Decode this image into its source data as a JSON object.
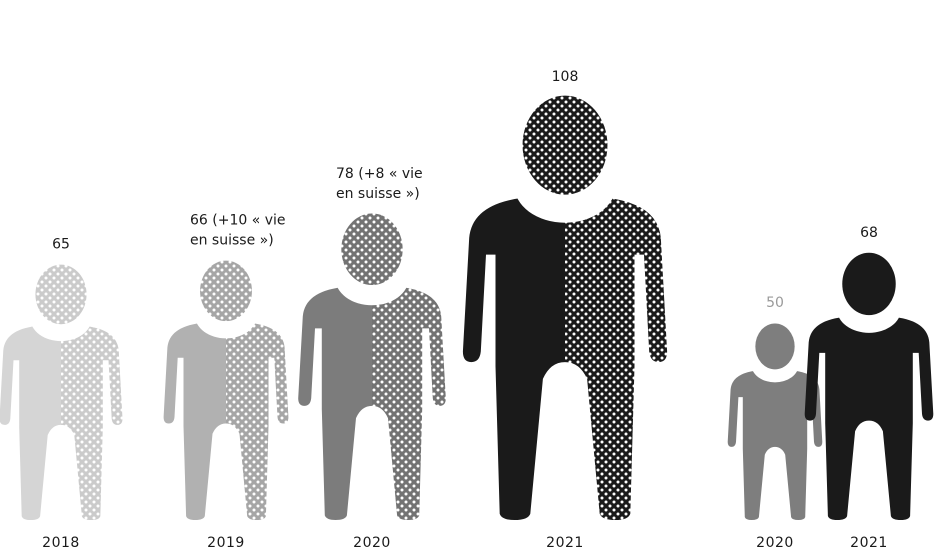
{
  "chart_data": {
    "type": "pictogram",
    "groups": [
      {
        "items": [
          {
            "category": "2018",
            "value": 65,
            "value_label": "65",
            "extra_line1": "",
            "extra_line2": "",
            "solid_color": "#d5d5d5",
            "dot_bg_color": "#cbcbcb",
            "label_color": "#1a1a1a",
            "style": "split"
          },
          {
            "category": "2019",
            "value": 66,
            "value_label": "66",
            "extra_line1": "(+10 « vie",
            "extra_line2": "en suisse »)",
            "solid_color": "#b1b1b1",
            "dot_bg_color": "#a6a6a6",
            "label_color": "#1a1a1a",
            "style": "split"
          },
          {
            "category": "2020",
            "value": 78,
            "value_label": "78",
            "extra_line1": "(+8 « vie",
            "extra_line2": "en suisse »)",
            "solid_color": "#7c7c7c",
            "dot_bg_color": "#737373",
            "label_color": "#1a1a1a",
            "style": "split"
          },
          {
            "category": "2021",
            "value": 108,
            "value_label": "108",
            "extra_line1": "",
            "extra_line2": "",
            "solid_color": "#1a1a1a",
            "dot_bg_color": "#1a1a1a",
            "label_color": "#1a1a1a",
            "style": "split"
          }
        ]
      },
      {
        "items": [
          {
            "category": "2020",
            "value": 50,
            "value_label": "50",
            "extra_line1": "",
            "extra_line2": "",
            "solid_color": "#7e7e7e",
            "dot_bg_color": "#7e7e7e",
            "label_color": "#9a9a9a",
            "style": "solid"
          },
          {
            "category": "2021",
            "value": 68,
            "value_label": "68",
            "extra_line1": "",
            "extra_line2": "",
            "solid_color": "#1a1a1a",
            "dot_bg_color": "#1a1a1a",
            "label_color": "#1a1a1a",
            "style": "solid"
          }
        ]
      }
    ]
  }
}
